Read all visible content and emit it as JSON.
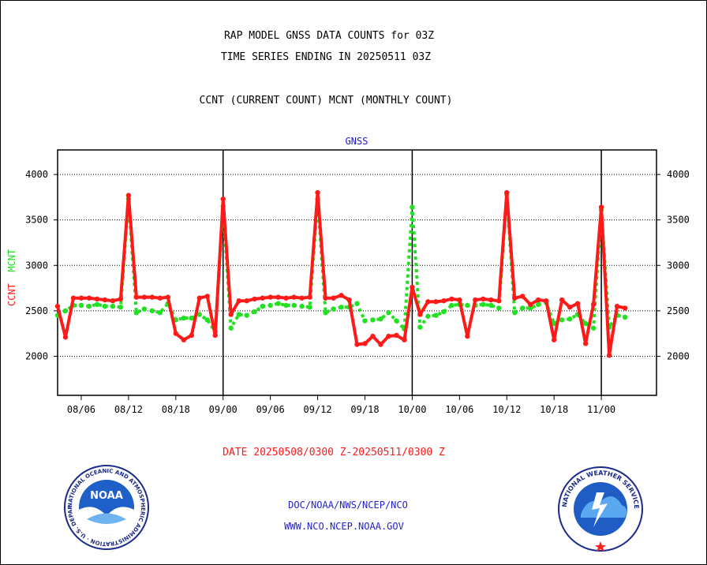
{
  "header": {
    "title_line1": "RAP MODEL GNSS DATA COUNTS for 03Z",
    "title_line2": "TIME SERIES ENDING IN 20250511 03Z",
    "subtitle": "CCNT (CURRENT COUNT) MCNT (MONTHLY COUNT)"
  },
  "footer": {
    "date_range": "DATE 20250508/0300 Z-20250511/0300 Z",
    "org_line": "DOC/NOAA/NWS/NCEP/NCO",
    "url_line": "WWW.NCO.NCEP.NOAA.GOV"
  },
  "logos": {
    "noaa_text": "NOAA",
    "noaa_ring_text": "NATIONAL OCEANIC AND ATMOSPHERIC ADMINISTRATION · U.S. DEPARTMENT OF COMMERCE ·",
    "nws_ring_text": "NATIONAL WEATHER SERVICE"
  },
  "colors": {
    "ccnt": "#ff1a1a",
    "mcnt": "#22e022",
    "axis": "#000000",
    "title_blue": "#1a1acc",
    "date_red": "#ff1a1a",
    "footer_blue": "#2222cc"
  },
  "chart_data": {
    "type": "line",
    "title": "GNSS",
    "ylabel_parts": [
      "CCNT",
      "MCNT"
    ],
    "ylim": [
      1570,
      4270
    ],
    "yticks": [
      2000,
      2500,
      3000,
      3500,
      4000
    ],
    "grid": "horizontal dotted",
    "x_range": [
      0,
      76
    ],
    "xticks": [
      {
        "label": "08/06",
        "x": 3
      },
      {
        "label": "08/12",
        "x": 9
      },
      {
        "label": "08/18",
        "x": 15
      },
      {
        "label": "09/00",
        "x": 21
      },
      {
        "label": "09/06",
        "x": 27
      },
      {
        "label": "09/12",
        "x": 33
      },
      {
        "label": "09/18",
        "x": 39
      },
      {
        "label": "10/00",
        "x": 45
      },
      {
        "label": "10/06",
        "x": 51
      },
      {
        "label": "10/12",
        "x": 57
      },
      {
        "label": "10/18",
        "x": 63
      },
      {
        "label": "11/00",
        "x": 69
      }
    ],
    "day_boundaries": [
      21,
      45,
      69
    ],
    "x": [
      0,
      1,
      2,
      3,
      4,
      5,
      6,
      7,
      8,
      9,
      10,
      11,
      12,
      13,
      14,
      15,
      16,
      17,
      18,
      19,
      20,
      21,
      22,
      23,
      24,
      25,
      26,
      27,
      28,
      29,
      30,
      31,
      32,
      33,
      34,
      35,
      36,
      37,
      38,
      39,
      40,
      41,
      42,
      43,
      44,
      45,
      46,
      47,
      48,
      49,
      50,
      51,
      52,
      53,
      54,
      55,
      56,
      57,
      58,
      59,
      60,
      61,
      62,
      63,
      64,
      65,
      66,
      67,
      68,
      69,
      70,
      71,
      72
    ],
    "series": [
      {
        "name": "CCNT",
        "values": [
          2550,
          2210,
          2640,
          2640,
          2640,
          2630,
          2620,
          2610,
          2630,
          3770,
          2650,
          2650,
          2650,
          2640,
          2650,
          2250,
          2180,
          2230,
          2640,
          2660,
          2230,
          3730,
          2460,
          2610,
          2610,
          2630,
          2640,
          2650,
          2650,
          2640,
          2650,
          2640,
          2650,
          3800,
          2640,
          2640,
          2670,
          2620,
          2130,
          2140,
          2220,
          2130,
          2220,
          2230,
          2180,
          2760,
          2460,
          2600,
          2600,
          2610,
          2630,
          2620,
          2220,
          2620,
          2630,
          2620,
          2610,
          3800,
          2640,
          2660,
          2570,
          2620,
          2610,
          2180,
          2620,
          2540,
          2580,
          2140,
          2570,
          3640,
          2010,
          2550,
          2530
        ]
      },
      {
        "name": "MCNT",
        "values": [
          2450,
          2500,
          2560,
          2560,
          2550,
          2570,
          2550,
          2550,
          2540,
          3730,
          2480,
          2520,
          2500,
          2480,
          2580,
          2400,
          2420,
          2420,
          2460,
          2400,
          2270,
          3650,
          2310,
          2460,
          2450,
          2490,
          2550,
          2560,
          2580,
          2560,
          2560,
          2550,
          2540,
          3730,
          2480,
          2520,
          2540,
          2540,
          2580,
          2390,
          2400,
          2410,
          2480,
          2390,
          2300,
          3640,
          2320,
          2440,
          2450,
          2490,
          2560,
          2570,
          2560,
          2560,
          2570,
          2560,
          2530,
          3780,
          2480,
          2530,
          2530,
          2570,
          2590,
          2360,
          2400,
          2410,
          2460,
          2360,
          2310,
          3610,
          2320,
          2450,
          2430
        ]
      }
    ]
  }
}
